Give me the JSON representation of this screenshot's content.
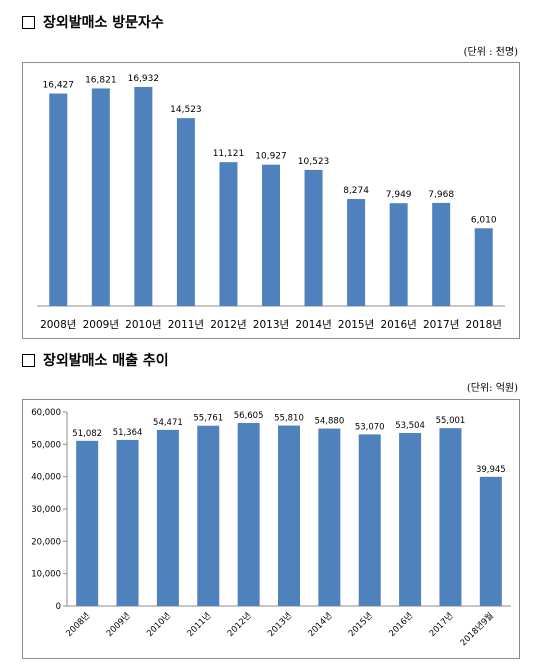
{
  "section1": {
    "title": "장외발매소 방문자수",
    "unit": "(단위 : 천명)"
  },
  "section2": {
    "title": "장외발매소 매출 추이",
    "unit": "(단위: 억원)"
  },
  "colors": {
    "bar": "#4f81bd"
  },
  "chart_data": [
    {
      "type": "bar",
      "title": "장외발매소 방문자수",
      "unit": "(단위 : 천명)",
      "categories": [
        "2008년",
        "2009년",
        "2010년",
        "2011년",
        "2012년",
        "2013년",
        "2014년",
        "2015년",
        "2016년",
        "2017년",
        "2018년"
      ],
      "values": [
        16427,
        16821,
        16932,
        14523,
        11121,
        10927,
        10523,
        8274,
        7949,
        7968,
        6010
      ],
      "value_labels": [
        "16,427",
        "16,821",
        "16,932",
        "14,523",
        "11,121",
        "10,927",
        "10,523",
        "8,274",
        "7,949",
        "7,968",
        "6,010"
      ],
      "ylim": [
        0,
        18000
      ],
      "grid": false,
      "legend": "none"
    },
    {
      "type": "bar",
      "title": "장외발매소 매출 추이",
      "unit": "(단위: 억원)",
      "categories": [
        "2008년",
        "2009년",
        "2010년",
        "2011년",
        "2012년",
        "2013년",
        "2014년",
        "2015년",
        "2016년",
        "2017년",
        "2018년9월"
      ],
      "values": [
        51082,
        51364,
        54471,
        55761,
        56605,
        55810,
        54880,
        53070,
        53504,
        55001,
        39945
      ],
      "value_labels": [
        "51,082",
        "51,364",
        "54,471",
        "55,761",
        "56,605",
        "55,810",
        "54,880",
        "53,070",
        "53,504",
        "55,001",
        "39,945"
      ],
      "yticks": [
        "0",
        "10,000",
        "20,000",
        "30,000",
        "40,000",
        "50,000",
        "60,000"
      ],
      "ylim": [
        0,
        60000
      ],
      "grid": false,
      "legend": "none"
    }
  ]
}
